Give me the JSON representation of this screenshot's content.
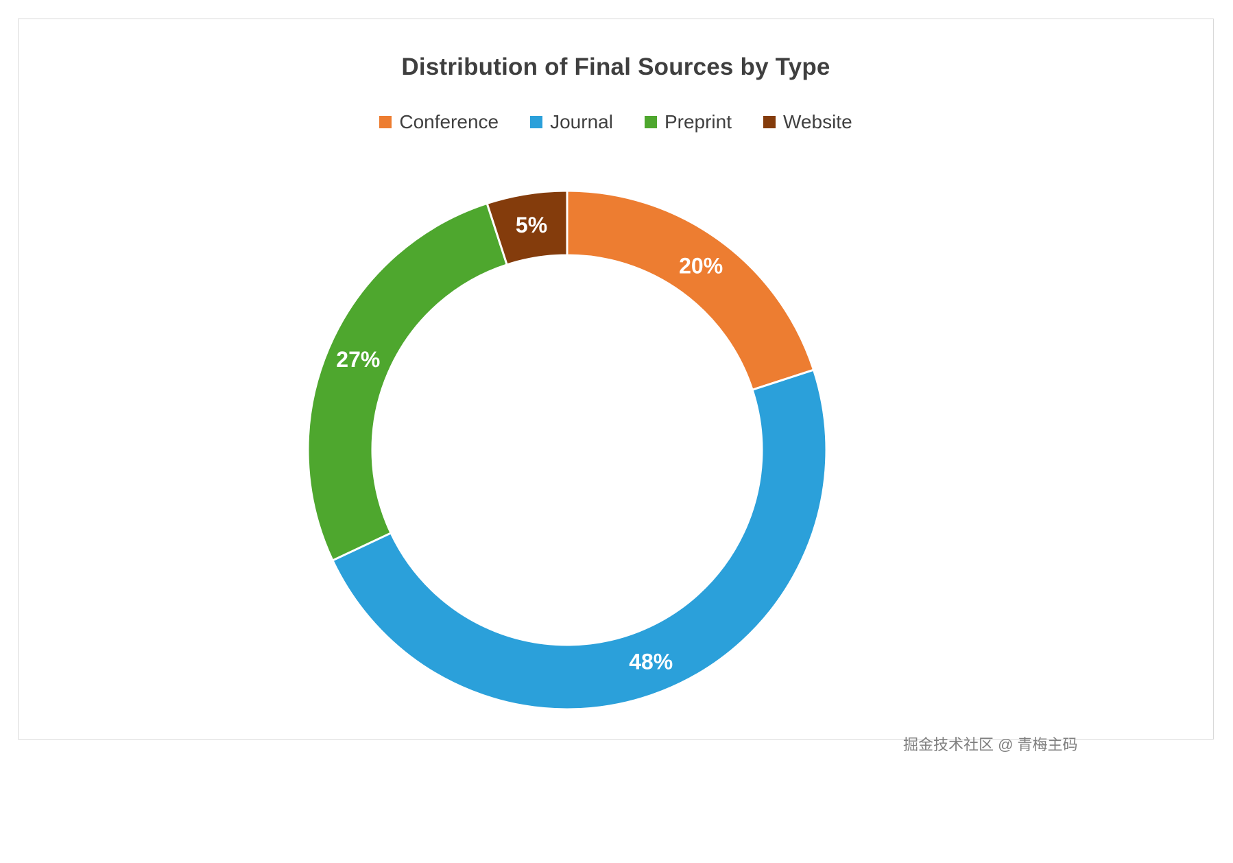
{
  "title": "Distribution of Final Sources by Type",
  "watermark": "掘金技术社区 @ 青梅主码",
  "chart_data": {
    "type": "pie",
    "subtype": "donut",
    "title": "Distribution of Final Sources by Type",
    "categories": [
      "Conference",
      "Journal",
      "Preprint",
      "Website"
    ],
    "values": [
      20,
      48,
      27,
      5
    ],
    "unit": "%",
    "labels": [
      "20%",
      "48%",
      "27%",
      "5%"
    ],
    "colors": [
      "#ED7D31",
      "#2BA0DA",
      "#4EA72E",
      "#843C0C"
    ],
    "legend_position": "top",
    "start_angle_deg": 0,
    "direction": "clockwise",
    "inner_radius_ratio": 0.75,
    "label_color": "#ffffff"
  }
}
